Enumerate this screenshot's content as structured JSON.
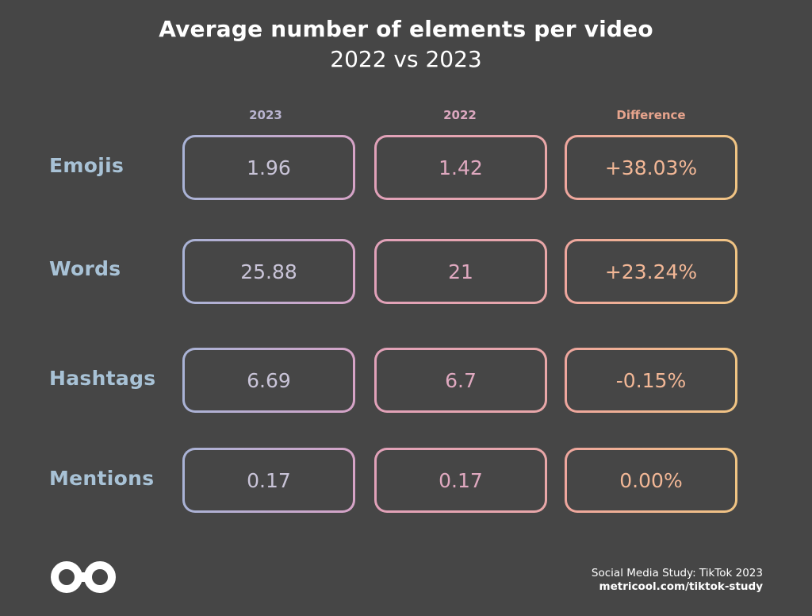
{
  "title": "Average number of elements per video",
  "subtitle": "2022 vs 2023",
  "columns": {
    "c2023": "2023",
    "c2022": "2022",
    "diff": "Difference"
  },
  "rows": [
    {
      "label": "Emojis",
      "v2023": "1.96",
      "v2022": "1.42",
      "diff": "+38.03%"
    },
    {
      "label": "Words",
      "v2023": "25.88",
      "v2022": "21",
      "diff": "+23.24%"
    },
    {
      "label": "Hashtags",
      "v2023": "6.69",
      "v2022": "6.7",
      "diff": "-0.15%"
    },
    {
      "label": "Mentions",
      "v2023": "0.17",
      "v2022": "0.17",
      "diff": "0.00%"
    }
  ],
  "chart_data": {
    "type": "table",
    "title": "Average number of elements per video",
    "subtitle": "2022 vs 2023",
    "columns": [
      "2023",
      "2022",
      "Difference"
    ],
    "rows": [
      "Emojis",
      "Words",
      "Hashtags",
      "Mentions"
    ],
    "values": [
      [
        1.96,
        1.42,
        "+38.03%"
      ],
      [
        25.88,
        21,
        "+23.24%"
      ],
      [
        6.69,
        6.7,
        "-0.15%"
      ],
      [
        0.17,
        0.17,
        "0.00%"
      ]
    ]
  },
  "footer": {
    "source": "Social Media Study: TikTok 2023",
    "url": "metricool.com/tiktok-study"
  },
  "colors": {
    "background": "#464646",
    "label": "#a8c2d6",
    "col2023": "#b8b3cf",
    "col2022": "#dba7bf",
    "diff": "#e7a48d"
  },
  "icons": {
    "logo": "metricool-infinity-logo"
  }
}
